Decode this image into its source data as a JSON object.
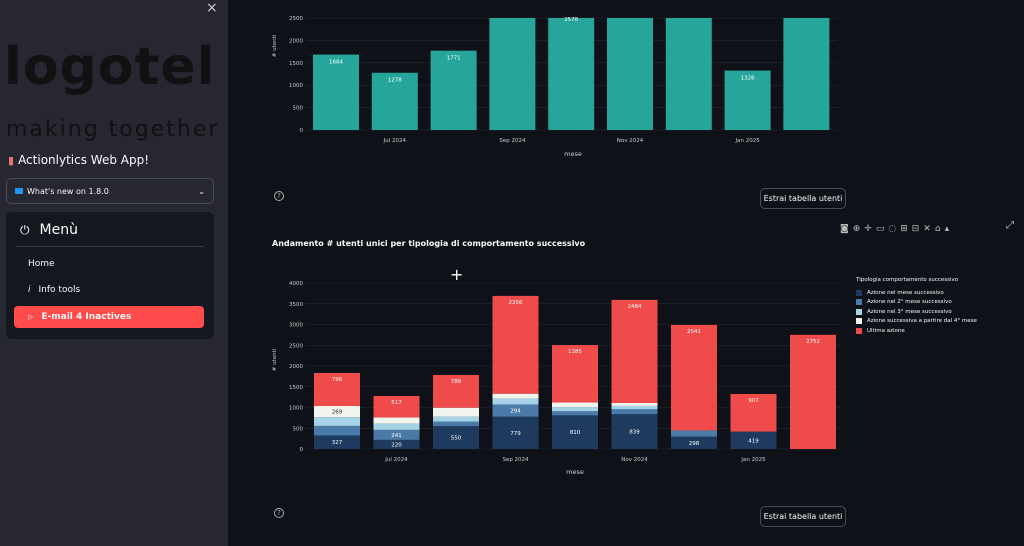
{
  "sidebar": {
    "close_icon": "×",
    "logo": {
      "text": "logotel",
      "tagline": "making together"
    },
    "app_title": "Actionlytics Web App!",
    "whats_new": "What's new on 1.8.0",
    "menu": {
      "title": "Menù",
      "items": [
        {
          "label": "Home",
          "icon": ""
        },
        {
          "label": "Info tools",
          "icon": "i"
        },
        {
          "label": "E-mail 4 Inactives",
          "icon": "▷",
          "active": true
        }
      ]
    }
  },
  "main": {
    "extract_button_1": "Estrai tabella utenti",
    "extract_button_2": "Estrai tabella utenti",
    "help_icon": "?",
    "chart2_title": "Andamento # utenti unici per tipologia di comportamento successivo",
    "toolbar_icons": [
      "camera-icon",
      "zoom-icon",
      "pan-icon",
      "box-select-icon",
      "lasso-icon",
      "zoom-in-icon",
      "zoom-out-icon",
      "autoscale-icon",
      "home-icon",
      "plotly-logo-icon"
    ]
  },
  "chart_data": [
    {
      "type": "bar",
      "xlabel": "mese",
      "ylabel": "# utenti",
      "yticks": [
        0,
        500,
        1000,
        1500,
        2000,
        2500
      ],
      "xticks": [
        "Jul 2024",
        "Sep 2024",
        "Nov 2024",
        "Jan 2025"
      ],
      "values": [
        1684,
        1278,
        1771,
        2500,
        2578,
        2500,
        2500,
        1326,
        2500
      ],
      "data_labels": [
        "1684",
        "1278",
        "1771",
        "",
        "2578",
        "",
        "",
        "1326",
        ""
      ],
      "color": "#26a69a"
    },
    {
      "type": "bar",
      "title": "Andamento # utenti unici per tipologia di comportamento successivo",
      "xlabel": "mese",
      "ylabel": "# utenti",
      "yticks": [
        0,
        500,
        1000,
        1500,
        2000,
        2500,
        3000,
        3500,
        4000
      ],
      "xticks": [
        "Jul 2024",
        "Sep 2024",
        "Nov 2024",
        "Jan 2025"
      ],
      "legend_title": "Tipologia comportamento successivo",
      "series": [
        {
          "name": "Azione nel mese successivo",
          "color": "#1f3a5f",
          "values": [
            327,
            220,
            550,
            779,
            810,
            839,
            298,
            419,
            0
          ],
          "labels": [
            "327",
            "220",
            "550",
            "779",
            "810",
            "839",
            "298",
            "419",
            ""
          ]
        },
        {
          "name": "Azione nel 2° mese successivo",
          "color": "#4a7ba8",
          "values": [
            230,
            241,
            110,
            294,
            100,
            120,
            150,
            0,
            0
          ],
          "labels": [
            "",
            "241",
            "",
            "294",
            "",
            "",
            "",
            "",
            ""
          ]
        },
        {
          "name": "Azione nel 3° mese successivo",
          "color": "#a6d3e8",
          "values": [
            210,
            150,
            120,
            140,
            100,
            80,
            0,
            0,
            0
          ],
          "labels": [
            "",
            "",
            "",
            "",
            "",
            "",
            "",
            "",
            ""
          ]
        },
        {
          "name": "Azione successiva a partire dal 4° mese",
          "color": "#f1f5ee",
          "values": [
            269,
            150,
            215,
            120,
            110,
            70,
            0,
            0,
            0
          ],
          "labels": [
            "269",
            "",
            "",
            "",
            "",
            "",
            "",
            "",
            ""
          ]
        },
        {
          "name": "Ultima azione",
          "color": "#ef4b4b",
          "values": [
            796,
            517,
            789,
            2356,
            1385,
            2484,
            2541,
            907,
            2752
          ],
          "labels": [
            "796",
            "517",
            "789",
            "2356",
            "1385",
            "2484",
            "2541",
            "907",
            "2752"
          ]
        }
      ]
    }
  ]
}
